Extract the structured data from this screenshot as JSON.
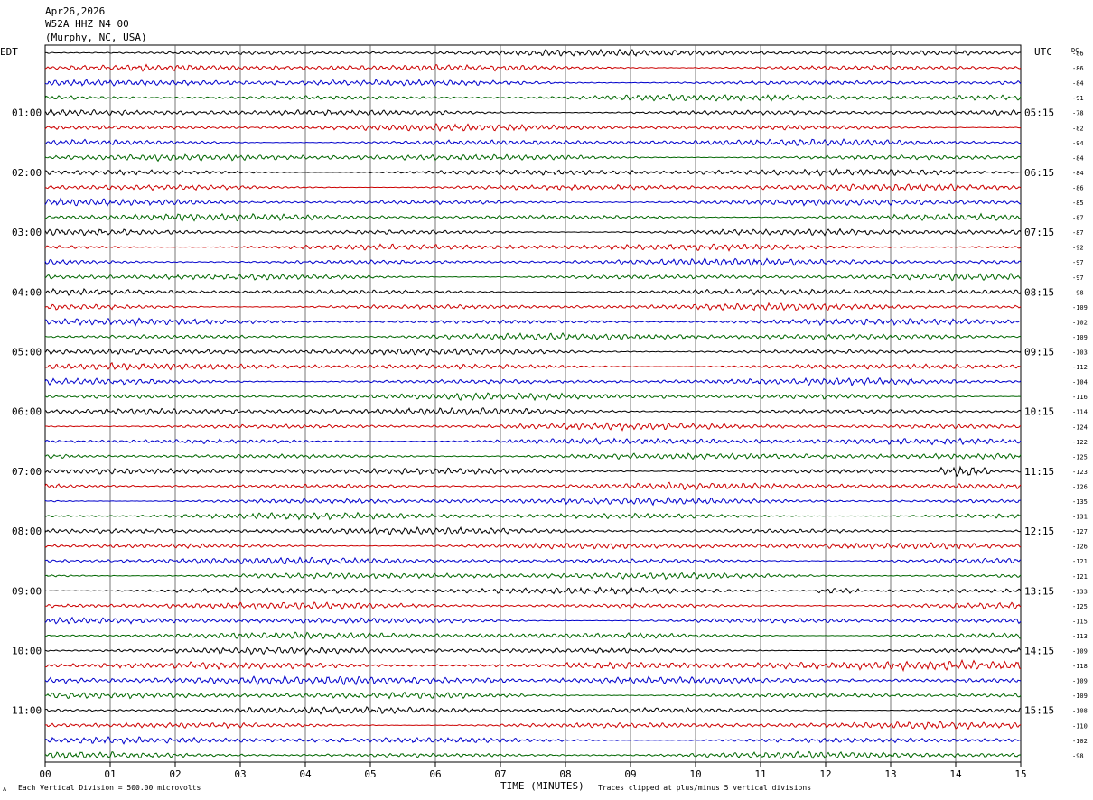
{
  "header": {
    "date": "Apr26,2026",
    "station": "W52A HHZ N4 00",
    "location": "(Murphy, NC, USA)"
  },
  "left_zone": "EDT",
  "right_zone": "UTC",
  "dc_label": "DC",
  "footer": {
    "division": "Each Vertical Division =  500.00 microvolts",
    "xlabel": "TIME (MINUTES)",
    "clip_note": "Traces clipped at plus/minus 5 vertical divisions",
    "corner_mark": "ʌ"
  },
  "chart_data": {
    "type": "line",
    "title": "",
    "xlabel": "TIME (MINUTES)",
    "ylabel": "",
    "x_ticks": [
      "00",
      "01",
      "02",
      "03",
      "04",
      "05",
      "06",
      "07",
      "08",
      "09",
      "10",
      "11",
      "12",
      "13",
      "14",
      "15"
    ],
    "xlim": [
      0,
      15
    ],
    "grid": true,
    "trace_colors": [
      "#000000",
      "#cc0000",
      "#0000cc",
      "#006600"
    ],
    "left_times": [
      "01:00",
      "02:00",
      "03:00",
      "04:00",
      "05:00",
      "06:00",
      "07:00",
      "08:00",
      "09:00",
      "10:00",
      "11:00"
    ],
    "right_times": [
      "05:15",
      "06:15",
      "07:15",
      "08:15",
      "09:15",
      "10:15",
      "11:15",
      "12:15",
      "13:15",
      "14:15",
      "15:15"
    ],
    "dc_offsets": [
      "-86",
      "-86",
      "-84",
      "-91",
      "-78",
      "-82",
      "-94",
      "-84",
      "-84",
      "-86",
      "-85",
      "-87",
      "-87",
      "-92",
      "-97",
      "-97",
      "-98",
      "-109",
      "-102",
      "-109",
      "-103",
      "-112",
      "-104",
      "-116",
      "-114",
      "-124",
      "-122",
      "-125",
      "-123",
      "-126",
      "-135",
      "-131",
      "-127",
      "-126",
      "-121",
      "-121",
      "-133",
      "-125",
      "-115",
      "-113",
      "-109",
      "-118",
      "-109",
      "-109",
      "-108",
      "-110",
      "-102",
      "-98"
    ],
    "events": [
      {
        "trace": 28,
        "start_min": 13.75,
        "end_min": 14.6,
        "amp": 2.4
      },
      {
        "trace": 36,
        "start_min": 11.85,
        "end_min": 12.5,
        "amp": 1.6
      },
      {
        "trace": 42,
        "start_min": 0.0,
        "end_min": 7.2,
        "amp": 1.3
      },
      {
        "trace": 41,
        "start_min": 8.0,
        "end_min": 15.0,
        "amp": 1.25
      }
    ]
  }
}
